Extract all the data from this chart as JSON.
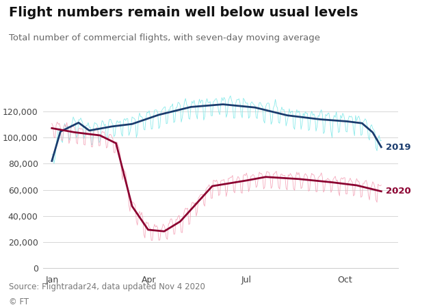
{
  "title": "Flight numbers remain well below usual levels",
  "subtitle": "Total number of commercial flights, with seven-day moving average",
  "source": "Source: Flightradar24, data updated Nov 4 2020",
  "copyright": "© FT",
  "ylim": [
    0,
    135000
  ],
  "yticks": [
    0,
    20000,
    40000,
    60000,
    80000,
    100000,
    120000
  ],
  "background_color": "#ffffff",
  "grid_color": "#d0d0d0",
  "label_2019": "2019",
  "label_2020": "2020",
  "color_2019_raw": "#7de8e8",
  "color_2019_ma": "#1a3c6e",
  "color_2020_raw": "#f4a0b5",
  "color_2020_ma": "#8b0030",
  "title_fontsize": 14,
  "subtitle_fontsize": 9.5,
  "source_fontsize": 8.5,
  "tick_fontsize": 9
}
